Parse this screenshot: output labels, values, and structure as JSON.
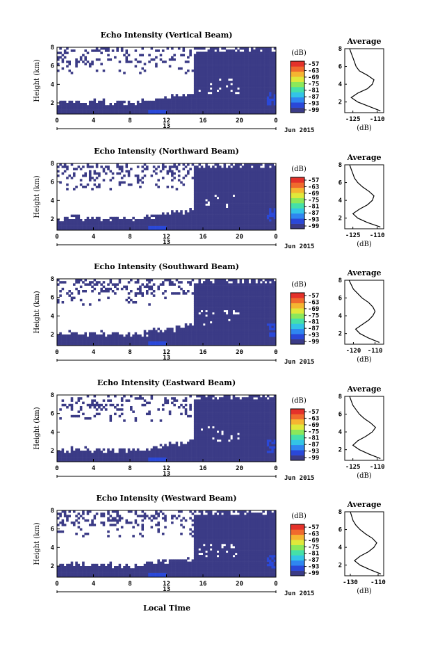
{
  "figure": {
    "xlabel_shared": "Local Time",
    "date_label": "Jun 2015",
    "day_label": "13"
  },
  "chart_data": [
    {
      "type": "heatmap",
      "title": "Echo Intensity (Vertical Beam)",
      "ylabel": "Height (km)",
      "x_ticks": [
        "0",
        "4",
        "8",
        "12",
        "16",
        "20",
        "0"
      ],
      "y_ticks": [
        "2",
        "4",
        "6",
        "8"
      ],
      "xlim": [
        0,
        24
      ],
      "ylim": [
        0.8,
        8
      ],
      "colorbar": {
        "label": "(dB)",
        "ticks": [
          "-57",
          "-63",
          "-69",
          "-75",
          "-81",
          "-87",
          "-93",
          "-99"
        ]
      },
      "profile": {
        "title": "Average",
        "xlabel": "(dB)",
        "x_ticks": [
          "-125",
          "-110"
        ],
        "xlim": [
          -130,
          -106
        ],
        "heights": [
          1.0,
          1.5,
          2.0,
          2.5,
          3.0,
          3.5,
          4.0,
          4.5,
          5.0,
          5.5,
          6.0,
          6.5,
          7.0,
          7.5,
          8.0
        ],
        "values": [
          -108,
          -115,
          -122,
          -126,
          -122,
          -116,
          -113,
          -112,
          -116,
          -121,
          -123,
          -124,
          -125,
          -126,
          -127
        ]
      },
      "seed": 11
    },
    {
      "type": "heatmap",
      "title": "Echo Intensity (Northward Beam)",
      "ylabel": "Height (km)",
      "x_ticks": [
        "0",
        "4",
        "8",
        "12",
        "16",
        "20",
        "0"
      ],
      "y_ticks": [
        "2",
        "4",
        "6",
        "8"
      ],
      "xlim": [
        0,
        24
      ],
      "ylim": [
        0.8,
        8
      ],
      "colorbar": {
        "label": "(dB)",
        "ticks": [
          "-57",
          "-63",
          "-69",
          "-75",
          "-81",
          "-87",
          "-93",
          "-99"
        ]
      },
      "profile": {
        "title": "Average",
        "xlabel": "(dB)",
        "x_ticks": [
          "-125",
          "-110"
        ],
        "xlim": [
          -130,
          -106
        ],
        "heights": [
          1.0,
          1.5,
          2.0,
          2.5,
          3.0,
          3.5,
          4.0,
          4.5,
          5.0,
          5.5,
          6.0,
          6.5,
          7.0,
          7.5,
          8.0
        ],
        "values": [
          -108,
          -116,
          -122,
          -125,
          -121,
          -116,
          -113,
          -112,
          -115,
          -119,
          -122,
          -124,
          -125,
          -126,
          -127
        ]
      },
      "seed": 23
    },
    {
      "type": "heatmap",
      "title": "Echo Intensity (Southward Beam)",
      "ylabel": "Height (km)",
      "x_ticks": [
        "0",
        "4",
        "8",
        "12",
        "16",
        "20",
        "0"
      ],
      "y_ticks": [
        "2",
        "4",
        "6",
        "8"
      ],
      "xlim": [
        0,
        24
      ],
      "ylim": [
        0.8,
        8
      ],
      "colorbar": {
        "label": "(dB)",
        "ticks": [
          "-57",
          "-63",
          "-69",
          "-75",
          "-81",
          "-87",
          "-93",
          "-99"
        ]
      },
      "profile": {
        "title": "Average",
        "xlabel": "(dB)",
        "x_ticks": [
          "-120",
          "-110"
        ],
        "xlim": [
          -124,
          -106
        ],
        "heights": [
          1.0,
          1.5,
          2.0,
          2.5,
          3.0,
          3.5,
          4.0,
          4.5,
          5.0,
          5.5,
          6.0,
          6.5,
          7.0,
          7.5,
          8.0
        ],
        "values": [
          -108,
          -113,
          -117,
          -119,
          -116,
          -113,
          -111,
          -110,
          -111,
          -113,
          -116,
          -118,
          -120,
          -121,
          -122
        ]
      },
      "seed": 37
    },
    {
      "type": "heatmap",
      "title": "Echo Intensity (Eastward Beam)",
      "ylabel": "Height (km)",
      "x_ticks": [
        "0",
        "4",
        "8",
        "12",
        "16",
        "20",
        "0"
      ],
      "y_ticks": [
        "2",
        "4",
        "6",
        "8"
      ],
      "xlim": [
        0,
        24
      ],
      "ylim": [
        0.8,
        8
      ],
      "colorbar": {
        "label": "(dB)",
        "ticks": [
          "-57",
          "-63",
          "-69",
          "-75",
          "-81",
          "-87",
          "-93",
          "-99"
        ]
      },
      "profile": {
        "title": "Average",
        "xlabel": "(dB)",
        "x_ticks": [
          "-125",
          "-110"
        ],
        "xlim": [
          -130,
          -106
        ],
        "heights": [
          1.0,
          1.5,
          2.0,
          2.5,
          3.0,
          3.5,
          4.0,
          4.5,
          5.0,
          5.5,
          6.0,
          6.5,
          7.0,
          7.5,
          8.0
        ],
        "values": [
          -108,
          -115,
          -121,
          -125,
          -122,
          -117,
          -113,
          -111,
          -114,
          -118,
          -121,
          -123,
          -125,
          -126,
          -127
        ]
      },
      "seed": 51
    },
    {
      "type": "heatmap",
      "title": "Echo Intensity (Westward Beam)",
      "ylabel": "Height (km)",
      "x_ticks": [
        "0",
        "4",
        "8",
        "12",
        "16",
        "20",
        "0"
      ],
      "y_ticks": [
        "2",
        "4",
        "6",
        "8"
      ],
      "xlim": [
        0,
        24
      ],
      "ylim": [
        0.8,
        8
      ],
      "colorbar": {
        "label": "(dB)",
        "ticks": [
          "-57",
          "-63",
          "-69",
          "-75",
          "-81",
          "-87",
          "-93",
          "-99"
        ]
      },
      "profile": {
        "title": "Average",
        "xlabel": "(dB)",
        "x_ticks": [
          "-130",
          "-110"
        ],
        "xlim": [
          -134,
          -106
        ],
        "heights": [
          1.0,
          1.5,
          2.0,
          2.5,
          3.0,
          3.5,
          4.0,
          4.5,
          5.0,
          5.5,
          6.0,
          6.5,
          7.0,
          7.5,
          8.0
        ],
        "values": [
          -108,
          -116,
          -123,
          -127,
          -123,
          -117,
          -113,
          -111,
          -114,
          -119,
          -123,
          -126,
          -128,
          -129,
          -130
        ]
      },
      "seed": 67
    }
  ],
  "colorscale": [
    "#3b3b86",
    "#2a48d8",
    "#2f86f0",
    "#33c4e6",
    "#45e0a8",
    "#8be85a",
    "#e0e83a",
    "#f5b531",
    "#f06a2d",
    "#e4312a"
  ]
}
